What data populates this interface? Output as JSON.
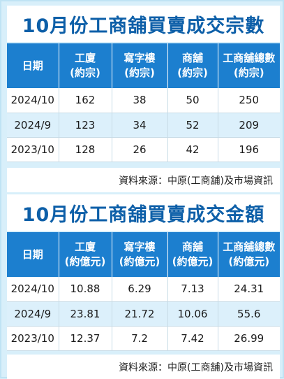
{
  "section1": {
    "title": "10月份工商舖買賣成交宗數",
    "headers": [
      {
        "line1": "日期",
        "line2": ""
      },
      {
        "line1": "工廈",
        "line2": "(約宗)"
      },
      {
        "line1": "寫字樓",
        "line2": "(約宗)"
      },
      {
        "line1": "商舖",
        "line2": "(約宗)"
      },
      {
        "line1": "工商舖總數",
        "line2": "(約宗)"
      }
    ],
    "rows": [
      [
        "2024/10",
        "162",
        "38",
        "50",
        "250"
      ],
      [
        "2024/9",
        "123",
        "34",
        "52",
        "209"
      ],
      [
        "2023/10",
        "128",
        "26",
        "42",
        "196"
      ]
    ],
    "source": "資料來源：中原(工商舖)及市場資訊"
  },
  "section2": {
    "title": "10月份工商舖買賣成交金額",
    "headers": [
      {
        "line1": "日期",
        "line2": ""
      },
      {
        "line1": "工廈",
        "line2": "(約億元)"
      },
      {
        "line1": "寫字樓",
        "line2": "(約億元)"
      },
      {
        "line1": "商舖",
        "line2": "(約億元)"
      },
      {
        "line1": "工商舖總數",
        "line2": "(約億元)"
      }
    ],
    "rows": [
      [
        "2024/10",
        "10.88",
        "6.29",
        "7.13",
        "24.31"
      ],
      [
        "2024/9",
        "23.81",
        "21.72",
        "10.06",
        "55.6"
      ],
      [
        "2023/10",
        "12.37",
        "7.2",
        "7.42",
        "26.99"
      ]
    ],
    "source": "資料來源：中原(工商舖)及市場資訊"
  },
  "colors": {
    "title_text": "#0d5fa8",
    "header_bg": "#1c7fcf",
    "page_bg": "#d8effa",
    "alt_row_bg": "#dcf0fb"
  }
}
